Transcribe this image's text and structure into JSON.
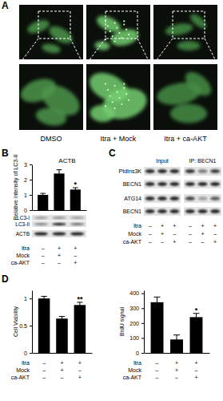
{
  "chart_data": [
    {
      "type": "bar",
      "title": "ACTB",
      "y_label": "Relative intensity of LC3-II",
      "categories": [
        null,
        null,
        null
      ],
      "values": [
        1.0,
        2.4,
        1.35
      ],
      "errors": [
        0.1,
        0.25,
        0.12
      ],
      "color": "#000000",
      "ylim": [
        0,
        3
      ],
      "yticks": [
        0,
        1,
        2,
        3
      ],
      "annotations": [
        null,
        null,
        "*"
      ],
      "conditions": {
        "rows": [
          "Itra",
          "Mock",
          "ca-AKT"
        ],
        "values": [
          [
            "–",
            "+",
            "+"
          ],
          [
            "–",
            "+",
            "–"
          ],
          [
            "–",
            "–",
            "+"
          ]
        ]
      }
    },
    {
      "type": "bar",
      "y_label": "Cell Viability",
      "categories": [
        null,
        null,
        null
      ],
      "values": [
        1.0,
        0.63,
        0.88
      ],
      "errors": [
        0.04,
        0.04,
        0.05
      ],
      "color": "#000000",
      "ylim": [
        0,
        1.15
      ],
      "yticks": [
        0,
        0.5,
        1
      ],
      "annotations": [
        null,
        null,
        "**"
      ],
      "conditions": {
        "rows": [
          "Itra",
          "Mock",
          "ca-AKT"
        ],
        "values": [
          [
            "–",
            "+",
            "+"
          ],
          [
            "–",
            "+",
            "–"
          ],
          [
            "–",
            "–",
            "+"
          ]
        ]
      }
    },
    {
      "type": "bar",
      "y_label": "BrdU signal",
      "categories": [
        null,
        null,
        null
      ],
      "values": [
        340,
        90,
        240
      ],
      "errors": [
        35,
        30,
        25
      ],
      "color": "#000000",
      "ylim": [
        0,
        420
      ],
      "yticks": [
        0,
        100,
        200,
        300,
        400
      ],
      "annotations": [
        null,
        null,
        "*"
      ],
      "conditions": {
        "rows": [
          "Itra",
          "Mock",
          "ca-AKT"
        ],
        "values": [
          [
            "–",
            "+",
            "+"
          ],
          [
            "–",
            "+",
            "–"
          ],
          [
            "–",
            "–",
            "+"
          ]
        ]
      }
    }
  ],
  "panels": {
    "labels": [
      "A",
      "B",
      "C",
      "D"
    ],
    "a": {
      "captions": [
        "DMSO",
        "Itra + Mock",
        "Itra + ca-AKT"
      ]
    },
    "b": {
      "blot_labels": [
        "LC3-I",
        "LC3-II",
        "ACTB"
      ]
    },
    "c": {
      "headers": [
        "Input",
        "IP: BECN1"
      ],
      "blot_labels": [
        "PtdIns3K",
        "BECN1",
        "ATG14",
        "BECN1"
      ],
      "conditions": {
        "rows": [
          "Itra",
          "Mock",
          "ca-AKT"
        ],
        "values": [
          [
            "–",
            "+",
            "+",
            "–",
            "+",
            "+"
          ],
          [
            "–",
            "+",
            "–",
            "–",
            "+",
            "–"
          ],
          [
            "–",
            "–",
            "+",
            "–",
            "–",
            "+"
          ]
        ]
      }
    }
  }
}
